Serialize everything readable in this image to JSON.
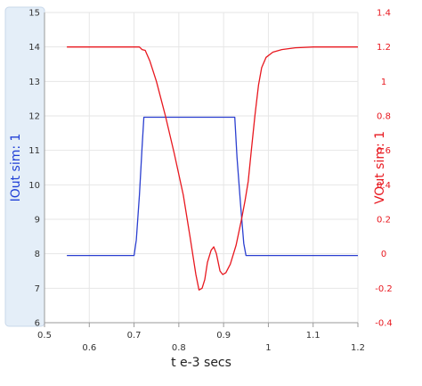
{
  "chart_data": {
    "type": "line",
    "xlabel": "t e-3 secs",
    "ylabel_left": "IOut sim:  1",
    "ylabel_right": "VOut sim:  1",
    "xlim": [
      0.5,
      1.2
    ],
    "ylim_left": [
      6,
      15
    ],
    "ylim_right": [
      -0.4,
      1.4
    ],
    "x_ticks_major": [
      "0.5",
      "0.7",
      "0.9",
      "1.1"
    ],
    "x_ticks_minor": [
      "0.6",
      "0.8",
      "1",
      "1.2"
    ],
    "y_ticks_left": [
      "6",
      "7",
      "8",
      "9",
      "10",
      "11",
      "12",
      "13",
      "14",
      "15"
    ],
    "y_ticks_right": [
      "-0.4",
      "-0.2",
      "0",
      "0.2",
      "0.4",
      "0.6",
      "0.8",
      "1",
      "1.2",
      "1.4"
    ],
    "grid": true,
    "colors": {
      "left_axis": "#1f3fd6",
      "right_axis": "#e8181f",
      "grid": "#e6e6e6",
      "left_panel": "#e4eef8"
    },
    "series": [
      {
        "axis": "left",
        "color": "#2b3fd0",
        "points": [
          [
            0.55,
            7.95
          ],
          [
            0.7,
            7.95
          ],
          [
            0.705,
            8.4
          ],
          [
            0.712,
            9.7
          ],
          [
            0.718,
            11.1
          ],
          [
            0.722,
            11.96
          ],
          [
            0.925,
            11.96
          ],
          [
            0.93,
            10.8
          ],
          [
            0.938,
            9.4
          ],
          [
            0.945,
            8.3
          ],
          [
            0.95,
            7.95
          ],
          [
            1.2,
            7.95
          ]
        ]
      },
      {
        "axis": "right",
        "color": "#e8181f",
        "points": [
          [
            0.55,
            1.2
          ],
          [
            0.7,
            1.2
          ],
          [
            0.712,
            1.2
          ],
          [
            0.718,
            1.185
          ],
          [
            0.725,
            1.18
          ],
          [
            0.735,
            1.12
          ],
          [
            0.75,
            1.0
          ],
          [
            0.77,
            0.8
          ],
          [
            0.79,
            0.58
          ],
          [
            0.81,
            0.34
          ],
          [
            0.825,
            0.1
          ],
          [
            0.838,
            -0.12
          ],
          [
            0.845,
            -0.21
          ],
          [
            0.852,
            -0.2
          ],
          [
            0.858,
            -0.15
          ],
          [
            0.864,
            -0.05
          ],
          [
            0.872,
            0.02
          ],
          [
            0.878,
            0.04
          ],
          [
            0.884,
            0.0
          ],
          [
            0.892,
            -0.1
          ],
          [
            0.898,
            -0.12
          ],
          [
            0.905,
            -0.11
          ],
          [
            0.915,
            -0.06
          ],
          [
            0.928,
            0.05
          ],
          [
            0.94,
            0.2
          ],
          [
            0.948,
            0.31
          ],
          [
            0.955,
            0.42
          ],
          [
            0.962,
            0.6
          ],
          [
            0.97,
            0.8
          ],
          [
            0.978,
            0.98
          ],
          [
            0.985,
            1.08
          ],
          [
            0.995,
            1.14
          ],
          [
            1.01,
            1.17
          ],
          [
            1.03,
            1.185
          ],
          [
            1.06,
            1.195
          ],
          [
            1.1,
            1.2
          ],
          [
            1.2,
            1.2
          ]
        ]
      }
    ]
  }
}
